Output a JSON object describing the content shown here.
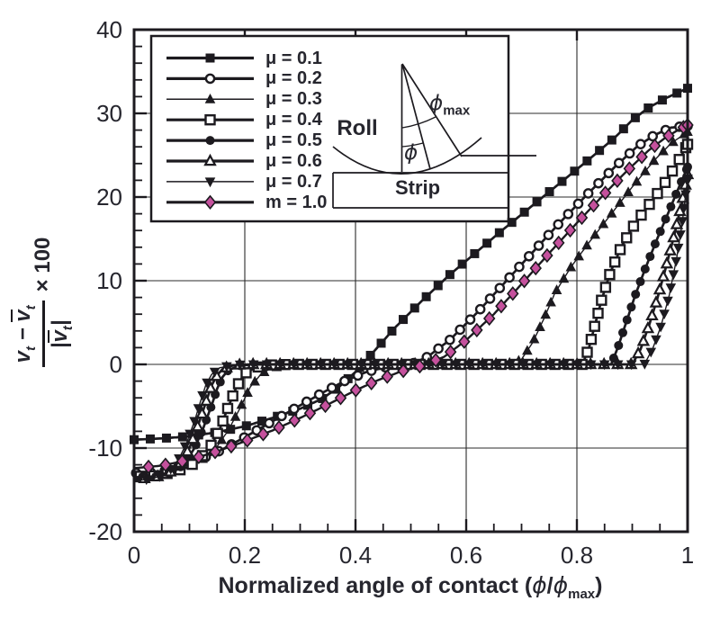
{
  "figure": {
    "background": "#ffffff",
    "ink_color": "#1c1a1f",
    "label_color": "#26262e",
    "accent_color": "#c5519d"
  },
  "chart_data": {
    "type": "line",
    "title": "",
    "xlabel": "Normalized angle of contact (ϕ/ϕmax)",
    "ylabel": "(vt − v̄t)/|v̄t| × 100",
    "xlim": [
      0,
      1
    ],
    "ylim": [
      -20,
      40
    ],
    "grid": true,
    "legend_position": "upper-left",
    "x_ticks": [
      {
        "v": 0,
        "label": "0"
      },
      {
        "v": 0.2,
        "label": "0.2"
      },
      {
        "v": 0.4,
        "label": "0.4"
      },
      {
        "v": 0.6,
        "label": "0.6"
      },
      {
        "v": 0.8,
        "label": "0.8"
      },
      {
        "v": 1,
        "label": "1"
      }
    ],
    "y_ticks": [
      {
        "v": 40,
        "label": "40"
      },
      {
        "v": 30,
        "label": "30"
      },
      {
        "v": 20,
        "label": "20"
      },
      {
        "v": 10,
        "label": "10"
      },
      {
        "v": 0,
        "label": "0"
      },
      {
        "v": -10,
        "label": "-10"
      },
      {
        "v": -20,
        "label": "-20"
      }
    ],
    "x_minor_step": 0.05,
    "y_minor_step": 2,
    "series": [
      {
        "name": "μ = 0.1",
        "marker": "square",
        "line_width": 2.7,
        "marker_spacing": 18,
        "points": [
          [
            0,
            -9
          ],
          [
            0.05,
            -8.85
          ],
          [
            0.1,
            -8.6
          ],
          [
            0.15,
            -8.1
          ],
          [
            0.2,
            -7.4
          ],
          [
            0.25,
            -6.4
          ],
          [
            0.3,
            -5.3
          ],
          [
            0.34,
            -4.1
          ],
          [
            0.37,
            -2.7
          ],
          [
            0.4,
            -0.9
          ],
          [
            0.43,
            1.3
          ],
          [
            0.47,
            4.3
          ],
          [
            0.52,
            7.6
          ],
          [
            0.57,
            10.7
          ],
          [
            0.62,
            13.5
          ],
          [
            0.67,
            16.3
          ],
          [
            0.72,
            19
          ],
          [
            0.77,
            21.7
          ],
          [
            0.82,
            24.4
          ],
          [
            0.87,
            27.2
          ],
          [
            0.9,
            29.2
          ],
          [
            0.93,
            30.7
          ],
          [
            0.96,
            31.8
          ],
          [
            1,
            33
          ]
        ]
      },
      {
        "name": "μ = 0.2",
        "marker": "circle-open",
        "line_width": 2.7,
        "marker_spacing": 16,
        "points": [
          [
            0,
            -13
          ],
          [
            0.05,
            -12.8
          ],
          [
            0.1,
            -11.9
          ],
          [
            0.15,
            -10.5
          ],
          [
            0.2,
            -8.7
          ],
          [
            0.25,
            -6.8
          ],
          [
            0.3,
            -4.9
          ],
          [
            0.34,
            -3.4
          ],
          [
            0.38,
            -2
          ],
          [
            0.42,
            -0.9
          ],
          [
            0.46,
            -0.25
          ],
          [
            0.5,
            0
          ],
          [
            0.53,
            0.9
          ],
          [
            0.57,
            2.9
          ],
          [
            0.62,
            6.2
          ],
          [
            0.67,
            9.8
          ],
          [
            0.72,
            13.4
          ],
          [
            0.77,
            17
          ],
          [
            0.82,
            20.4
          ],
          [
            0.87,
            23.7
          ],
          [
            0.91,
            26.1
          ],
          [
            0.94,
            27.4
          ],
          [
            0.97,
            28.3
          ],
          [
            1,
            28.5
          ]
        ]
      },
      {
        "name": "μ = 0.3",
        "marker": "triangle",
        "line_width": 1.4,
        "marker_spacing": 15,
        "points": [
          [
            0,
            -13.4
          ],
          [
            0.05,
            -13.1
          ],
          [
            0.09,
            -12.4
          ],
          [
            0.12,
            -11.5
          ],
          [
            0.15,
            -9.8
          ],
          [
            0.17,
            -7.9
          ],
          [
            0.19,
            -5.4
          ],
          [
            0.21,
            -2.7
          ],
          [
            0.23,
            -1.1
          ],
          [
            0.25,
            -0.4
          ],
          [
            0.28,
            -0.1
          ],
          [
            0.32,
            0
          ],
          [
            0.5,
            0
          ],
          [
            0.68,
            0
          ],
          [
            0.7,
            0.6
          ],
          [
            0.72,
            2.6
          ],
          [
            0.74,
            5.4
          ],
          [
            0.76,
            8.5
          ],
          [
            0.79,
            11.7
          ],
          [
            0.82,
            14.4
          ],
          [
            0.86,
            17.8
          ],
          [
            0.9,
            21.2
          ],
          [
            0.94,
            24.4
          ],
          [
            0.97,
            26.4
          ],
          [
            1,
            27.8
          ]
        ]
      },
      {
        "name": "μ = 0.4",
        "marker": "square-open",
        "line_width": 2.7,
        "marker_spacing": 15,
        "points": [
          [
            0,
            -13.4
          ],
          [
            0.04,
            -13.3
          ],
          [
            0.07,
            -12.9
          ],
          [
            0.1,
            -12.2
          ],
          [
            0.12,
            -11.2
          ],
          [
            0.14,
            -9.6
          ],
          [
            0.155,
            -7.7
          ],
          [
            0.17,
            -5.1
          ],
          [
            0.185,
            -2.7
          ],
          [
            0.2,
            -1.1
          ],
          [
            0.22,
            -0.35
          ],
          [
            0.25,
            -0.05
          ],
          [
            0.29,
            0
          ],
          [
            0.5,
            0
          ],
          [
            0.81,
            0
          ],
          [
            0.822,
            2
          ],
          [
            0.833,
            4.8
          ],
          [
            0.845,
            7.8
          ],
          [
            0.86,
            10.9
          ],
          [
            0.88,
            14
          ],
          [
            0.9,
            16.3
          ],
          [
            0.92,
            18.2
          ],
          [
            0.94,
            19.9
          ],
          [
            0.96,
            21.8
          ],
          [
            0.98,
            23.9
          ],
          [
            1,
            26.3
          ]
        ]
      },
      {
        "name": "μ = 0.5",
        "marker": "circle",
        "line_width": 2.7,
        "marker_spacing": 15,
        "points": [
          [
            0,
            -13.5
          ],
          [
            0.04,
            -13.4
          ],
          [
            0.06,
            -13.1
          ],
          [
            0.08,
            -12.5
          ],
          [
            0.095,
            -11.5
          ],
          [
            0.11,
            -9.9
          ],
          [
            0.125,
            -7.6
          ],
          [
            0.14,
            -4.9
          ],
          [
            0.15,
            -2.9
          ],
          [
            0.16,
            -1.5
          ],
          [
            0.17,
            -0.7
          ],
          [
            0.19,
            -0.15
          ],
          [
            0.22,
            0
          ],
          [
            0.5,
            0
          ],
          [
            0.862,
            0
          ],
          [
            0.875,
            2.2
          ],
          [
            0.89,
            5.2
          ],
          [
            0.905,
            8.2
          ],
          [
            0.925,
            11.7
          ],
          [
            0.945,
            15
          ],
          [
            0.965,
            18.1
          ],
          [
            0.982,
            20.8
          ],
          [
            1,
            23.6
          ]
        ]
      },
      {
        "name": "μ = 0.6",
        "marker": "triangle-open",
        "line_width": 2.7,
        "marker_spacing": 15,
        "points": [
          [
            0,
            -13.7
          ],
          [
            0.03,
            -13.6
          ],
          [
            0.05,
            -13.3
          ],
          [
            0.07,
            -12.7
          ],
          [
            0.085,
            -11.7
          ],
          [
            0.1,
            -10
          ],
          [
            0.115,
            -7.4
          ],
          [
            0.13,
            -4.5
          ],
          [
            0.14,
            -2.5
          ],
          [
            0.15,
            -1.3
          ],
          [
            0.16,
            -0.55
          ],
          [
            0.18,
            -0.1
          ],
          [
            0.21,
            0
          ],
          [
            0.5,
            0
          ],
          [
            0.9,
            0
          ],
          [
            0.915,
            1.8
          ],
          [
            0.93,
            4.6
          ],
          [
            0.945,
            7.8
          ],
          [
            0.96,
            11.4
          ],
          [
            0.975,
            15.2
          ],
          [
            0.99,
            19.4
          ],
          [
            1,
            22.7
          ]
        ]
      },
      {
        "name": "μ = 0.7",
        "marker": "triangle-down",
        "line_width": 1.4,
        "marker_spacing": 15,
        "points": [
          [
            0,
            -13.9
          ],
          [
            0.03,
            -13.7
          ],
          [
            0.05,
            -13.3
          ],
          [
            0.065,
            -12.6
          ],
          [
            0.08,
            -11.4
          ],
          [
            0.095,
            -9.4
          ],
          [
            0.11,
            -6.6
          ],
          [
            0.12,
            -4.4
          ],
          [
            0.13,
            -2.4
          ],
          [
            0.14,
            -1.2
          ],
          [
            0.155,
            -0.4
          ],
          [
            0.18,
            -0.05
          ],
          [
            0.21,
            0
          ],
          [
            0.5,
            0
          ],
          [
            0.922,
            0
          ],
          [
            0.937,
            1.9
          ],
          [
            0.952,
            4.6
          ],
          [
            0.967,
            8.3
          ],
          [
            0.98,
            12.6
          ],
          [
            0.99,
            16.8
          ],
          [
            1,
            22.2
          ]
        ]
      },
      {
        "name": "m = 1.0",
        "marker": "diamond",
        "line_width": 2.4,
        "marker_spacing": 19,
        "points": [
          [
            0,
            -12.4
          ],
          [
            0.05,
            -12.1
          ],
          [
            0.1,
            -11.4
          ],
          [
            0.15,
            -10.4
          ],
          [
            0.2,
            -9.2
          ],
          [
            0.25,
            -7.9
          ],
          [
            0.3,
            -6.4
          ],
          [
            0.35,
            -4.8
          ],
          [
            0.4,
            -3.1
          ],
          [
            0.44,
            -1.9
          ],
          [
            0.48,
            -0.9
          ],
          [
            0.52,
            -0.15
          ],
          [
            0.56,
            0.9
          ],
          [
            0.6,
            2.9
          ],
          [
            0.65,
            6
          ],
          [
            0.7,
            9.6
          ],
          [
            0.75,
            13.3
          ],
          [
            0.8,
            16.9
          ],
          [
            0.85,
            20.4
          ],
          [
            0.89,
            23.1
          ],
          [
            0.93,
            25.6
          ],
          [
            0.96,
            27.1
          ],
          [
            0.98,
            27.9
          ],
          [
            1,
            28.6
          ]
        ]
      }
    ]
  },
  "y_axis_title": {
    "num_v1": "v",
    "num_sub1": "t",
    "minus": "−",
    "num_v2": "v",
    "num_sub2": "t",
    "bar_left": "|",
    "den_v": "v",
    "den_sub": "t",
    "bar_right": "|",
    "suffix": "× 100"
  },
  "x_axis_title": {
    "prefix": "Normalized angle of contact (",
    "phi1": "ϕ",
    "slash": "/",
    "phi2": "ϕ",
    "sub": "max",
    "suffix": ")"
  },
  "inset": {
    "roll_label": "Roll",
    "strip_label": "Strip",
    "phi_label": "ϕ",
    "phi_max_label": "ϕ",
    "phi_max_sub": "max"
  }
}
